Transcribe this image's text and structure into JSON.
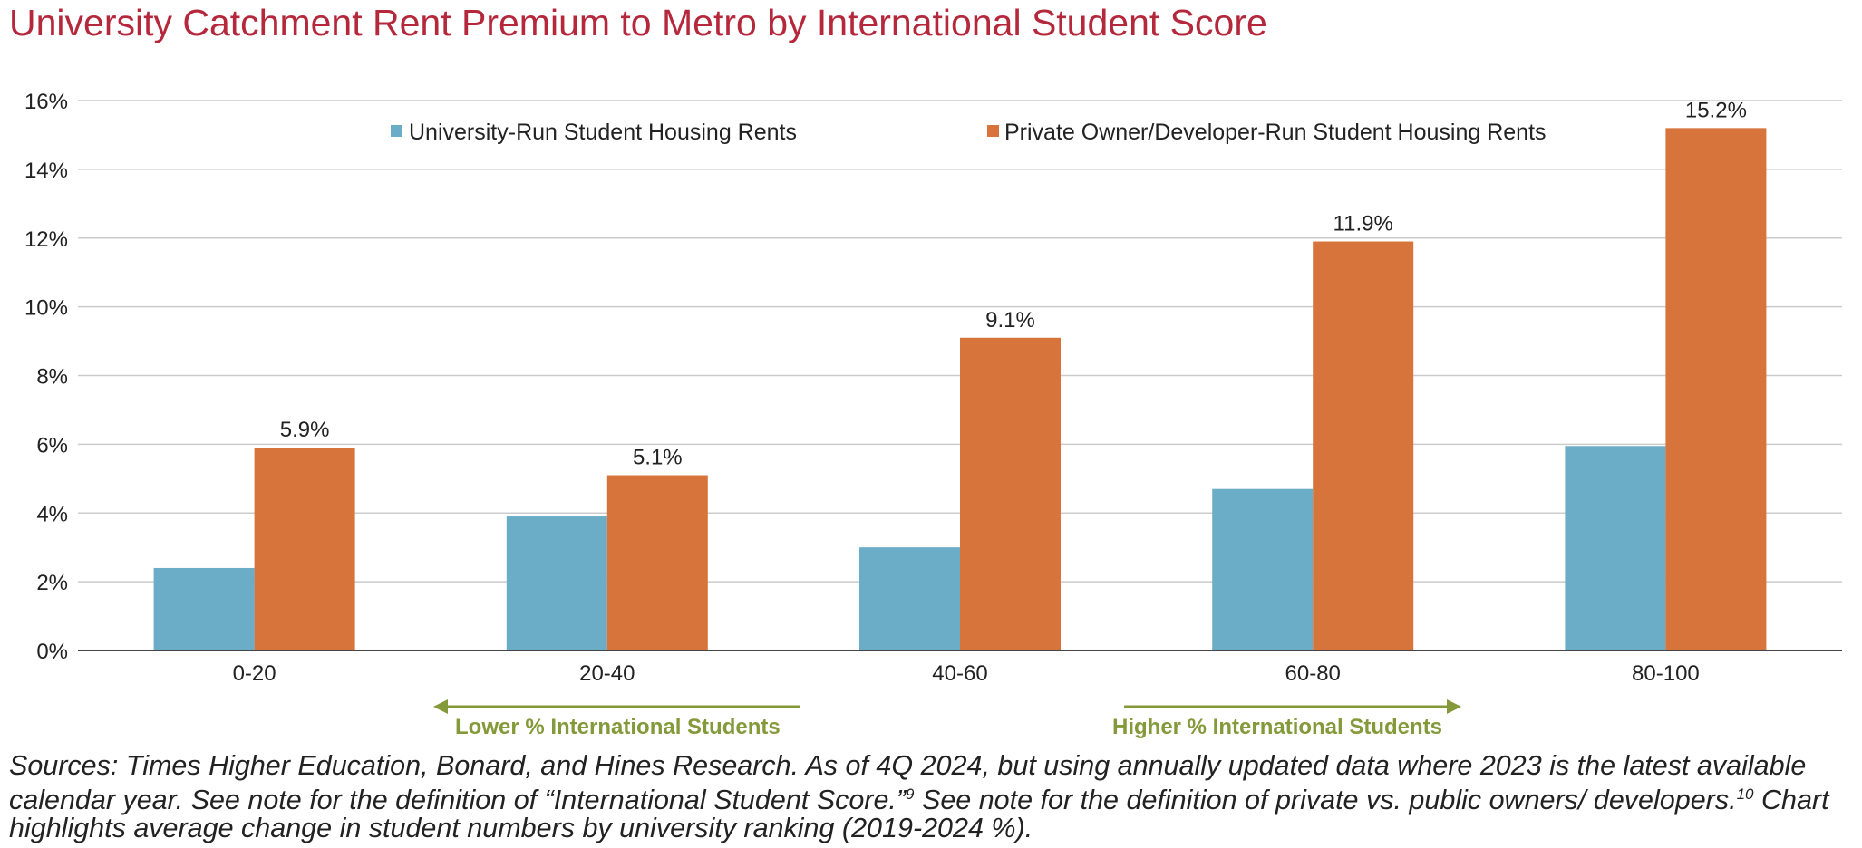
{
  "title": "University Catchment Rent Premium to Metro by International Student Score",
  "colors": {
    "title": "#b5283c",
    "university": "#6badc7",
    "private": "#d6743b",
    "grid": "#cccccc",
    "axis": "#444444",
    "annotation": "#84993a"
  },
  "chart_data": {
    "type": "bar",
    "categories": [
      "0-20",
      "20-40",
      "40-60",
      "60-80",
      "80-100"
    ],
    "series": [
      {
        "name": "University-Run Student Housing Rents",
        "values": [
          2.4,
          3.9,
          3.0,
          4.7,
          5.95
        ],
        "labels": [
          "",
          "",
          "",
          "",
          ""
        ]
      },
      {
        "name": "Private Owner/Developer-Run Student Housing Rents",
        "values": [
          5.9,
          5.1,
          9.1,
          11.9,
          15.2
        ],
        "labels": [
          "5.9%",
          "5.1%",
          "9.1%",
          "11.9%",
          "15.2%"
        ]
      }
    ],
    "yticks": [
      "0%",
      "2%",
      "4%",
      "6%",
      "8%",
      "10%",
      "12%",
      "14%",
      "16%"
    ],
    "ylim": [
      0,
      16
    ],
    "grid": true,
    "legend_position": "top"
  },
  "annotations": {
    "lower": "Lower % International Students",
    "higher": "Higher % International Students"
  },
  "source": {
    "part1": "Sources: Times Higher Education, Bonard, and Hines Research. As of 4Q 2024, but using annually updated data where 2023 is the latest available calendar year. See note for the definition of “International Student Score.”",
    "sup1": "9",
    "part2": " See note for the definition of private vs. public owners/ developers.",
    "sup2": "10",
    "part3": " Chart highlights average change in student numbers by university ranking (2019-2024 %)."
  }
}
